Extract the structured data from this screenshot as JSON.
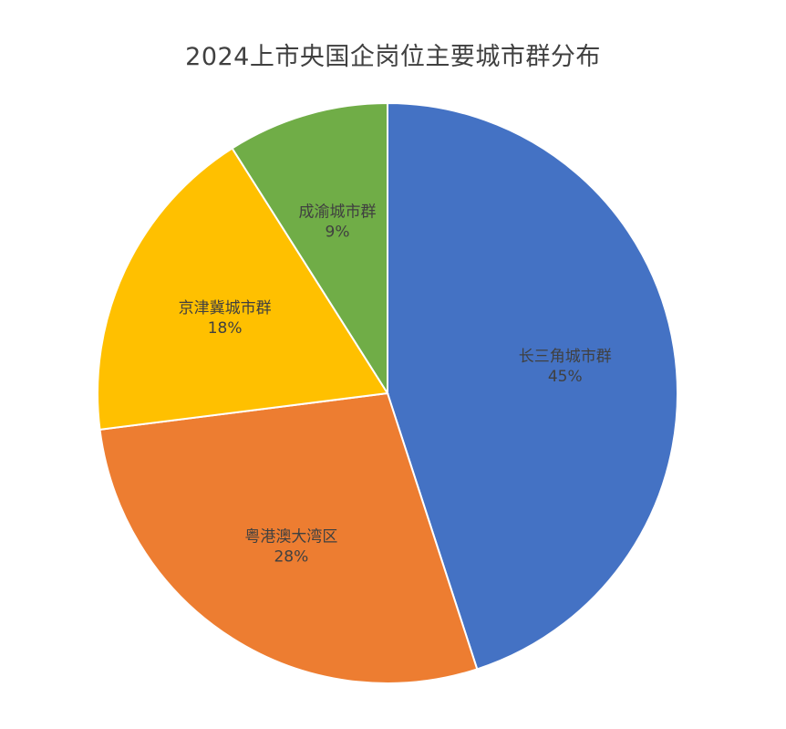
{
  "chart_data": {
    "type": "pie",
    "title": "2024上市央国企岗位主要城市群分布",
    "slices": [
      {
        "label": "长三角城市群",
        "value": 45,
        "value_label": "45%",
        "color": "#4472C4"
      },
      {
        "label": "粤港澳大湾区",
        "value": 28,
        "value_label": "28%",
        "color": "#ED7D31"
      },
      {
        "label": "京津冀城市群",
        "value": 18,
        "value_label": "18%",
        "color": "#FFC000"
      },
      {
        "label": "成渝城市群",
        "value": 9,
        "value_label": "9%",
        "color": "#70AD47"
      }
    ],
    "start": "12 o'clock",
    "direction": "clockwise",
    "legend": "none"
  }
}
